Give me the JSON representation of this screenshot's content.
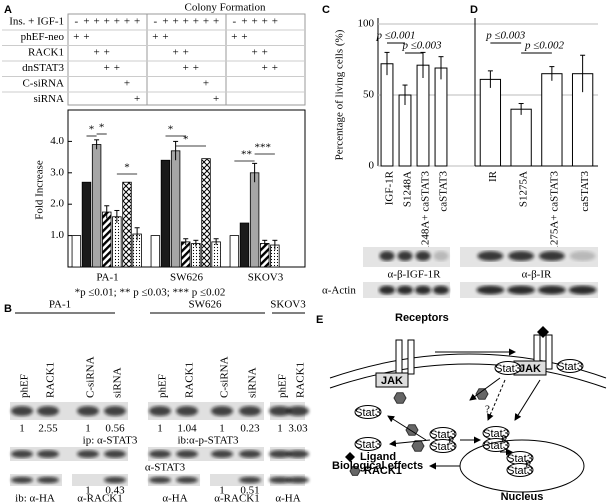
{
  "panel_labels": [
    "A",
    "B",
    "C",
    "D",
    "E"
  ],
  "chart_data": [
    {
      "type": "bar",
      "title": "Colony Formation",
      "y_label": "Fold Increase",
      "categories": [
        "PA-1",
        "SW626",
        "SKOV3"
      ],
      "series": [
        {
          "color": "#ffffff",
          "pattern": "solid",
          "values": [
            1.0,
            1.0,
            1.0
          ],
          "errors": [
            null,
            null,
            null
          ]
        },
        {
          "color": "#1a1a1a",
          "pattern": "solid",
          "values": [
            2.7,
            3.4,
            1.4
          ],
          "errors": [
            null,
            null,
            null
          ]
        },
        {
          "color": "#a6a6a6",
          "pattern": "solid",
          "values": [
            3.9,
            3.7,
            3.0
          ],
          "errors": [
            0.15,
            0.3,
            0.3
          ]
        },
        {
          "color": "#000000",
          "pattern": "diagonal",
          "values": [
            1.75,
            0.8,
            0.75
          ],
          "errors": [
            0.2,
            0.1,
            0.1
          ]
        },
        {
          "color": "#000000",
          "pattern": "dots",
          "values": [
            1.6,
            0.75,
            0.7
          ],
          "errors": [
            0.2,
            0.1,
            0.15
          ]
        },
        {
          "color": "#000000",
          "pattern": "crosshatch",
          "values": [
            2.7,
            3.45,
            null
          ],
          "errors": [
            null,
            null,
            null
          ]
        },
        {
          "color": "#000000",
          "pattern": "dots",
          "values": [
            1.05,
            0.8,
            null
          ],
          "errors": [
            0.2,
            0.1,
            null
          ]
        }
      ],
      "ylim": [
        0,
        5
      ],
      "yticks": [
        {
          "value": 1,
          "label": "1.0"
        },
        {
          "value": 2,
          "label": "2.0"
        },
        {
          "value": 3,
          "label": "3.0"
        },
        {
          "value": 4,
          "label": "4.0"
        }
      ],
      "annotations": [
        "*",
        "*",
        "*",
        "*",
        "*",
        "**",
        "***"
      ],
      "footnote": "*p ≤0.01; ** p ≤0.03; *** p ≤0.02"
    },
    {
      "type": "bar",
      "y_label": "Percentage of living cells (%)",
      "categories": [
        "IGF-1R",
        "S1248A",
        "S1248A+ caSTAT3",
        "caSTAT3"
      ],
      "values": [
        72,
        50,
        71,
        69
      ],
      "errors": [
        8,
        7,
        9,
        8
      ],
      "color": "#ffffff",
      "ylim": [
        0,
        100
      ],
      "yticks": [
        0,
        50,
        100
      ],
      "grid": true,
      "annotations": [
        "p ≤0.001",
        "p ≤0.003"
      ],
      "blot_labels": [
        "α-β-IGF-1R",
        "α-Actin"
      ]
    },
    {
      "type": "bar",
      "categories": [
        "IR",
        "S1275A",
        "S1275A+ caSTAT3",
        "caSTAT3"
      ],
      "values": [
        61,
        40,
        65,
        65
      ],
      "errors": [
        6,
        4,
        5,
        13
      ],
      "color": "#ffffff",
      "ylim": [
        0,
        100
      ],
      "annotations": [
        "p ≤0.003",
        "p ≤0.002"
      ],
      "blot_labels": [
        "α-β-IR"
      ]
    }
  ],
  "table": {
    "rows": [
      {
        "label": "Ins. + IGF-1",
        "cells": [
          [
            "-",
            "+",
            "+",
            "+",
            "+",
            "+",
            "+"
          ],
          [
            "-",
            "+",
            "+",
            "+",
            "+",
            "+",
            "+"
          ],
          [
            "-",
            "+",
            "+",
            "+",
            "+"
          ]
        ]
      },
      {
        "label": "phEF-neo",
        "cells": [
          [
            "+",
            "+",
            null,
            null,
            null,
            null,
            null
          ],
          [
            "+",
            "+",
            null,
            null,
            null,
            null,
            null
          ],
          [
            "+",
            "+",
            null,
            null,
            null
          ]
        ]
      },
      {
        "label": "RACK1",
        "cells": [
          [
            null,
            null,
            "+",
            "+",
            null,
            null,
            null
          ],
          [
            null,
            null,
            "+",
            "+",
            null,
            null,
            null
          ],
          [
            null,
            null,
            "+",
            "+",
            null
          ]
        ]
      },
      {
        "label": "dnSTAT3",
        "cells": [
          [
            null,
            null,
            null,
            "+",
            "+",
            null,
            null
          ],
          [
            null,
            null,
            null,
            "+",
            "+",
            null,
            null
          ],
          [
            null,
            null,
            null,
            "+",
            "+"
          ]
        ]
      },
      {
        "label": "C-siRNA",
        "cells": [
          [
            null,
            null,
            null,
            null,
            null,
            "+",
            null
          ],
          [
            null,
            null,
            null,
            null,
            null,
            "+",
            null
          ],
          [
            null,
            null,
            null,
            null,
            null
          ]
        ]
      },
      {
        "label": "siRNA",
        "cells": [
          [
            null,
            null,
            null,
            null,
            null,
            null,
            "+"
          ],
          [
            null,
            null,
            null,
            null,
            null,
            null,
            "+"
          ],
          [
            null,
            null,
            null,
            null,
            null
          ]
        ]
      }
    ]
  },
  "panel_b": {
    "cell_lines": [
      "PA-1",
      "SW626",
      "SKOV3"
    ],
    "lanes": [
      "phEF",
      "RACK1",
      "C-siRNA",
      "siRNA",
      "phEF",
      "RACK1",
      "C-siRNA",
      "siRNA",
      "phEF",
      "RACK1"
    ],
    "ratios_top": [
      1,
      2.55,
      1,
      0.56,
      1,
      1.04,
      1,
      0.23,
      1,
      3.03
    ],
    "ratios_bottom": [
      1,
      0.43,
      1,
      0.51
    ],
    "labels": [
      "ip: α-STAT3",
      "ib:α-p-STAT3",
      "α-STAT3",
      "ib: α-HA",
      "α-RACK1",
      "α-HA",
      "α-RACK1",
      "α-HA"
    ]
  },
  "diagram": {
    "receptors": "Receptors",
    "ligand": "Ligand",
    "rack1": "RACK1",
    "effects": "Biological effects",
    "nucleus": "Nucleus",
    "unknown": "?",
    "jak": "JAK",
    "stat3": "Stat3",
    "phospho": "P"
  }
}
